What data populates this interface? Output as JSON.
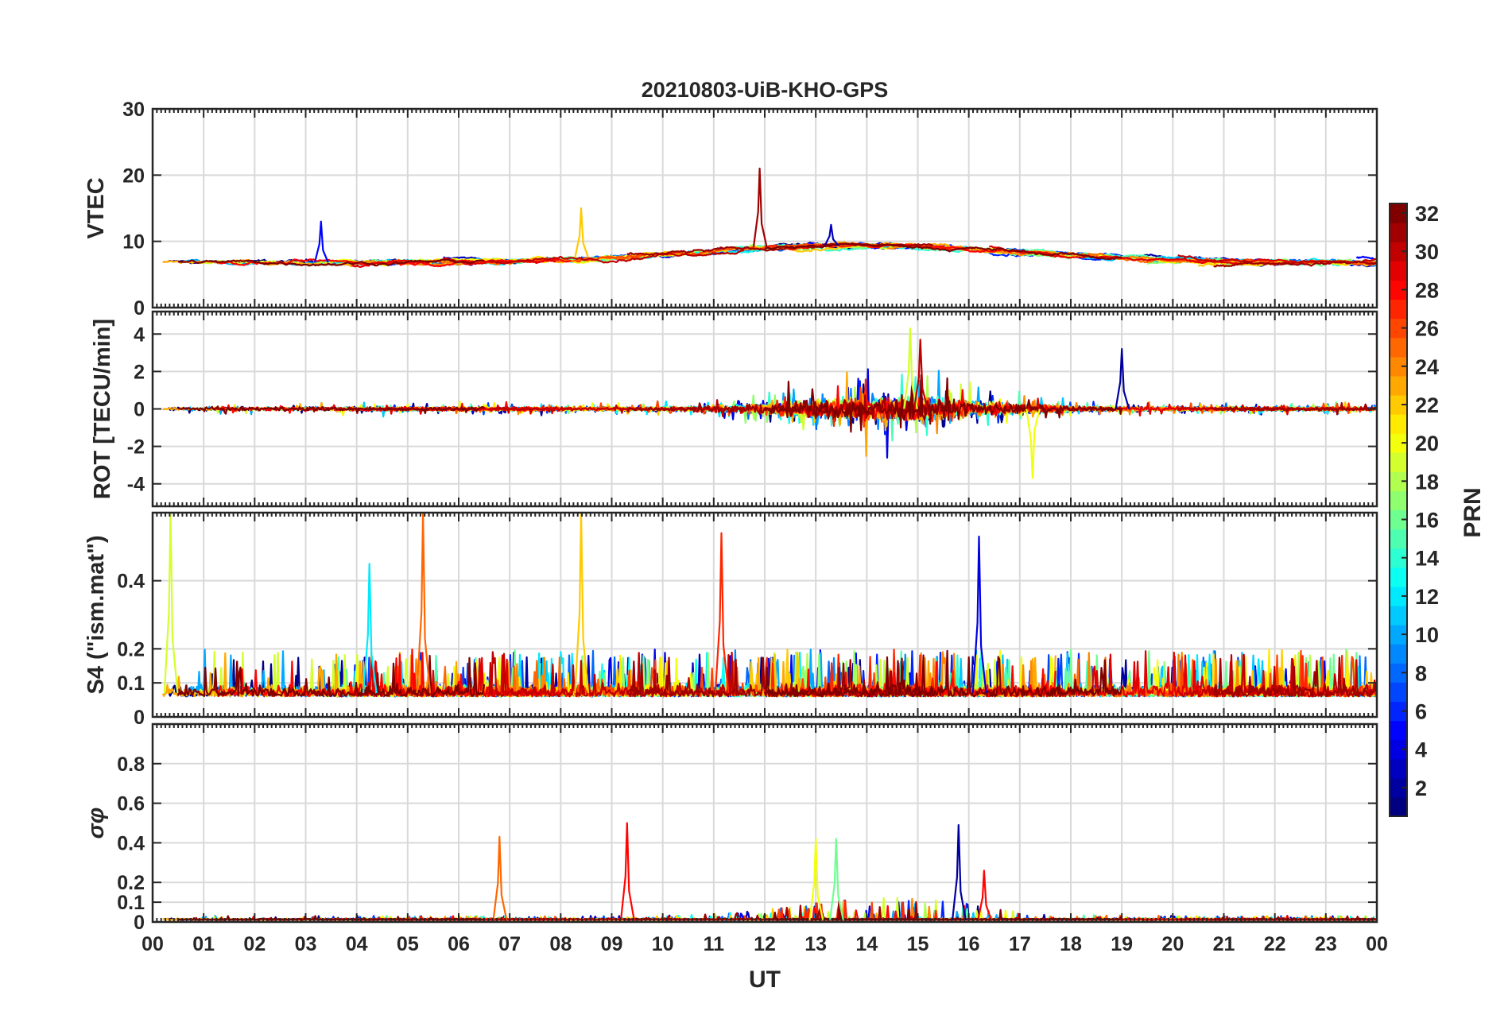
{
  "chart_data": {
    "type": "line",
    "title": "20210803-UiB-KHO-GPS",
    "x_label": "UT",
    "x_range_hours": [
      0,
      24
    ],
    "x_tick_labels": [
      "00",
      "01",
      "02",
      "03",
      "04",
      "05",
      "06",
      "07",
      "08",
      "09",
      "10",
      "11",
      "12",
      "13",
      "14",
      "15",
      "16",
      "17",
      "18",
      "19",
      "20",
      "21",
      "22",
      "23",
      "00"
    ],
    "colorbar": {
      "label": "PRN",
      "range": [
        1,
        32
      ],
      "ticks": [
        2,
        4,
        6,
        8,
        10,
        12,
        14,
        16,
        18,
        20,
        22,
        24,
        26,
        28,
        30,
        32
      ],
      "tick_labels": [
        "2",
        "4",
        "6",
        "8",
        "10",
        "12",
        "14",
        "16",
        "18",
        "20",
        "22",
        "24",
        "26",
        "28",
        "30",
        "32"
      ]
    },
    "panels": [
      {
        "id": "vtec",
        "ylabel": "VTEC",
        "ylim": [
          0,
          30
        ],
        "yticks": [
          0,
          10,
          20,
          30
        ],
        "ytick_labels": [
          "0",
          "10",
          "20",
          "30"
        ],
        "series_summary": "VTEC around 6-8 TECU at night, rising to about 9-11 TECU around 10-17 UT; spike to about 21 TECU near 11.9 UT (PRN 31)",
        "highlights": [
          {
            "prn": 31,
            "t": 11.9,
            "peak": 21
          },
          {
            "prn": 22,
            "t": 8.4,
            "peak": 15
          },
          {
            "prn": 5,
            "t": 3.3,
            "peak": 13
          },
          {
            "prn": 3,
            "t": 13.3,
            "peak": 12.5
          }
        ]
      },
      {
        "id": "rot",
        "ylabel": "ROT [TECU/min]",
        "ylim": [
          -5.2,
          5.2
        ],
        "yticks": [
          -4,
          -2,
          0,
          2,
          4
        ],
        "ytick_labels": [
          "-4",
          "-2",
          "0",
          "2",
          "4"
        ],
        "series_summary": "ROT fluctuates near 0 with enhanced activity between 12 and 17 UT (about ±3 to ±4 TECU/min)",
        "highlights": [
          {
            "prn": 19,
            "t": 14.85,
            "peak": 4.3
          },
          {
            "prn": 30,
            "t": 15.05,
            "peak": 3.7
          },
          {
            "prn": 20,
            "t": 17.25,
            "peak": -3.7
          },
          {
            "prn": 2,
            "t": 19.0,
            "peak": 3.2
          }
        ]
      },
      {
        "id": "s4",
        "ylabel": "S4 (\"ism.mat\")",
        "ylim": [
          0,
          0.6
        ],
        "yticks": [
          0,
          0.1,
          0.2,
          0.4
        ],
        "ytick_labels": [
          "0",
          "0.1",
          "0.2",
          "0.4"
        ],
        "series_summary": "S4 baseline about 0.05-0.1 with numerous spikes of 0.2-0.6",
        "highlights": [
          {
            "prn": 19,
            "t": 0.35,
            "peak": 0.6
          },
          {
            "prn": 25,
            "t": 5.3,
            "peak": 0.6
          },
          {
            "prn": 22,
            "t": 8.4,
            "peak": 0.6
          },
          {
            "prn": 27,
            "t": 11.15,
            "peak": 0.54
          },
          {
            "prn": 4,
            "t": 16.2,
            "peak": 0.53
          },
          {
            "prn": 12,
            "t": 4.25,
            "peak": 0.45
          }
        ]
      },
      {
        "id": "sigma_phi",
        "ylabel": "σφ",
        "ylim": [
          0,
          1
        ],
        "yticks": [
          0,
          0.1,
          0.2,
          0.4,
          0.6,
          0.8
        ],
        "ytick_labels": [
          "0",
          "0.1",
          "0.2",
          "0.4",
          "0.6",
          "0.8"
        ],
        "series_summary": "Phase scintillation mostly below 0.05 with spikes up to about 0.5",
        "highlights": [
          {
            "prn": 28,
            "t": 9.3,
            "peak": 0.5
          },
          {
            "prn": 2,
            "t": 15.8,
            "peak": 0.49
          },
          {
            "prn": 25,
            "t": 6.8,
            "peak": 0.43
          },
          {
            "prn": 20,
            "t": 13.0,
            "peak": 0.42
          },
          {
            "prn": 16,
            "t": 13.4,
            "peak": 0.42
          },
          {
            "prn": 28,
            "t": 16.3,
            "peak": 0.26
          }
        ]
      }
    ]
  }
}
